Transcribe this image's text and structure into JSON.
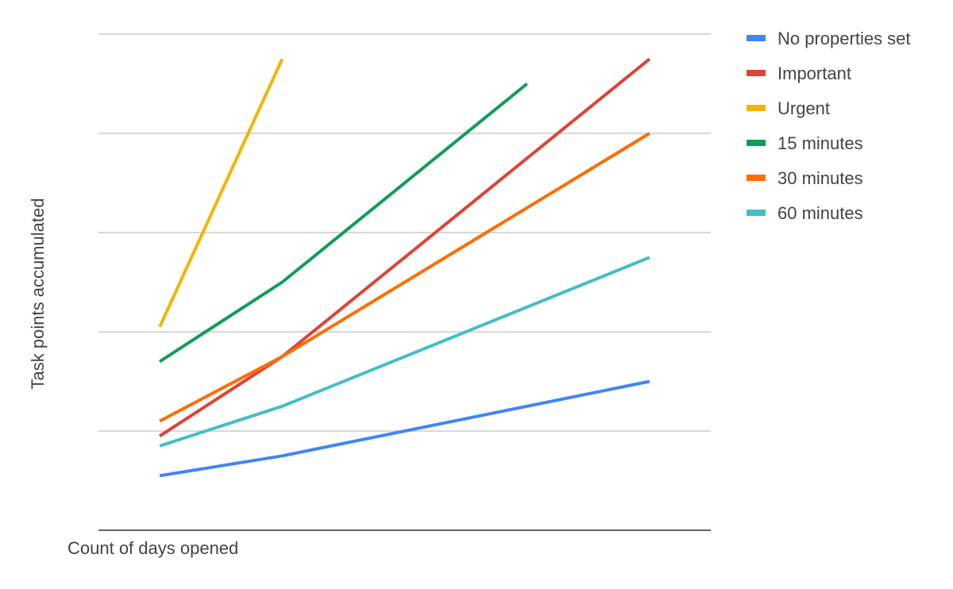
{
  "chart_data": {
    "type": "line",
    "title": "",
    "xlabel": "Count of days opened",
    "ylabel": "Task points accumulated",
    "x": [
      1,
      2,
      3,
      4,
      5
    ],
    "xlim": [
      0.5,
      5.5
    ],
    "ylim": [
      0,
      5
    ],
    "grid": true,
    "legend_position": "right",
    "series": [
      {
        "name": "No properties set",
        "color": "#4285f4",
        "values": [
          0.55,
          0.75,
          null,
          null,
          1.5
        ]
      },
      {
        "name": "Important",
        "color": "#db4437",
        "values": [
          0.95,
          1.75,
          null,
          null,
          4.75
        ]
      },
      {
        "name": "Urgent",
        "color": "#f4b400",
        "values": [
          2.05,
          4.75,
          null,
          null,
          null
        ]
      },
      {
        "name": "15 minutes",
        "color": "#0f9d58",
        "values": [
          1.7,
          2.5,
          null,
          4.5,
          null
        ]
      },
      {
        "name": "30 minutes",
        "color": "#ff6d00",
        "values": [
          1.1,
          1.75,
          null,
          null,
          4.0
        ]
      },
      {
        "name": "60 minutes",
        "color": "#46bdc6",
        "values": [
          0.85,
          1.25,
          null,
          null,
          2.75
        ]
      }
    ]
  }
}
